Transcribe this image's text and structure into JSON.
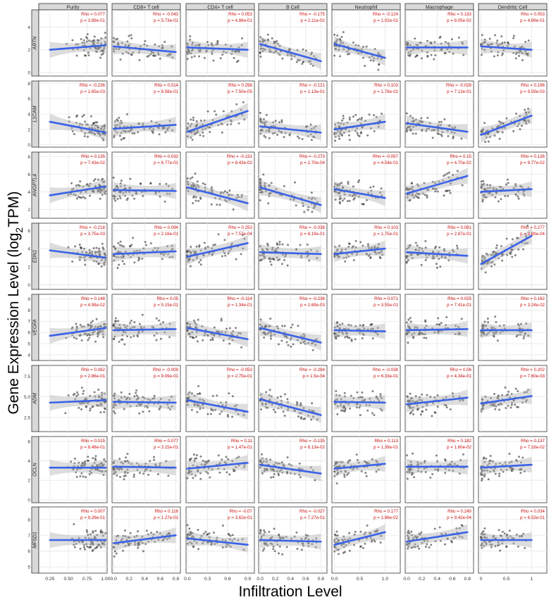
{
  "chart_data": {
    "type": "scatter",
    "title": "",
    "xlabel": "Infiltration Level",
    "ylabel": "Gene Expression Level (log2 TPM)",
    "ylabel_parts": [
      "Gene Expression Level (log",
      "2",
      "TPM)"
    ],
    "grid": true,
    "columns": [
      {
        "name": "Purity",
        "ticks": [
          "0.25",
          "0.50",
          "0.75",
          "1.00"
        ],
        "xlim": [
          0.1,
          1.02
        ],
        "tick_vals": [
          0.25,
          0.5,
          0.75,
          1.0
        ]
      },
      {
        "name": "CD8+ T cell",
        "ticks": [
          "0.0",
          "0.2",
          "0.4",
          "0.6",
          "0.8"
        ],
        "xlim": [
          -0.02,
          0.86
        ],
        "tick_vals": [
          0.0,
          0.2,
          0.4,
          0.6,
          0.8
        ]
      },
      {
        "name": "CD4+ T cell",
        "ticks": [
          "0.0",
          "0.3",
          "0.6",
          "0.9"
        ],
        "xlim": [
          -0.02,
          1.0
        ],
        "tick_vals": [
          0.0,
          0.3,
          0.6,
          0.9
        ]
      },
      {
        "name": "B Cell",
        "ticks": [
          "0.0",
          "0.2",
          "0.4",
          "0.6",
          "0.8"
        ],
        "xlim": [
          -0.02,
          0.88
        ],
        "tick_vals": [
          0.0,
          0.2,
          0.4,
          0.6,
          0.8
        ]
      },
      {
        "name": "Neutrophil",
        "ticks": [
          "0.0",
          "0.5",
          "1.0"
        ],
        "xlim": [
          -0.05,
          1.3
        ],
        "tick_vals": [
          0.0,
          0.5,
          1.0
        ]
      },
      {
        "name": "Macrophage",
        "ticks": [
          "0.0",
          "0.2",
          "0.4",
          "0.6",
          "0.8"
        ],
        "xlim": [
          -0.02,
          0.88
        ],
        "tick_vals": [
          0.0,
          0.2,
          0.4,
          0.6,
          0.8
        ]
      },
      {
        "name": "Dendritic Cell",
        "ticks": [
          "0",
          "0.5",
          "1"
        ],
        "xlim": [
          -0.05,
          1.3
        ],
        "tick_vals": [
          0,
          0.5,
          1
        ]
      }
    ],
    "rows": [
      {
        "gene": "ARTN",
        "yticks": [
          "0",
          "2",
          "4"
        ],
        "ytick_vals": [
          0,
          2,
          4
        ],
        "ylim": [
          -0.3,
          5.5
        ],
        "stats": [
          [
            "0.077",
            "3.89e-01"
          ],
          [
            "-0.043",
            "5.73e-01"
          ],
          [
            "0.053",
            "4.86e-01"
          ],
          [
            "-0.175",
            "2.11e-02"
          ],
          [
            "-0.124",
            "1.02e-01"
          ],
          [
            "0.133",
            "8.05e-02"
          ],
          [
            "0.053",
            "4.89e-01"
          ]
        ],
        "fits": [
          [
            2.0,
            2.4
          ],
          [
            2.3,
            1.8
          ],
          [
            2.2,
            2.0
          ],
          [
            2.5,
            1.0
          ],
          [
            2.5,
            1.3
          ],
          [
            2.2,
            2.2
          ],
          [
            2.3,
            2.0
          ]
        ]
      },
      {
        "gene": "L1CAM",
        "yticks": [
          "0",
          "2",
          "4",
          "6",
          "8"
        ],
        "ytick_vals": [
          0,
          2,
          4,
          6,
          8
        ],
        "ylim": [
          -0.3,
          8.3
        ],
        "stats": [
          [
            "-0.236",
            "1.65e-03"
          ],
          [
            "0.014",
            "8.58e-01"
          ],
          [
            "0.298",
            "7.50e-05"
          ],
          [
            "-0.121",
            "1.13e-01"
          ],
          [
            "0.103",
            "1.78e-01"
          ],
          [
            "-0.028",
            "7.13e-01"
          ],
          [
            "0.196",
            "9.59e-03"
          ]
        ],
        "fits": [
          [
            3.0,
            1.6
          ],
          [
            2.1,
            2.6
          ],
          [
            1.7,
            4.4
          ],
          [
            2.4,
            1.6
          ],
          [
            2.0,
            3.0
          ],
          [
            2.8,
            1.7
          ],
          [
            1.3,
            3.8
          ]
        ]
      },
      {
        "gene": "ANGPTL4",
        "yticks": [
          "2",
          "4",
          "6",
          "8"
        ],
        "ytick_vals": [
          2,
          4,
          6,
          8
        ],
        "ylim": [
          1.0,
          8.5
        ],
        "stats": [
          [
            "0.135",
            "7.43e-02"
          ],
          [
            "0.032",
            "6.77e-01"
          ],
          [
            "-0.131",
            "8.43e-02"
          ],
          [
            "-0.273",
            "2.70e-04"
          ],
          [
            "-0.057",
            "4.54e-01"
          ],
          [
            "0.15",
            "4.70e-02"
          ],
          [
            "0.126",
            "9.77e-02"
          ]
        ],
        "fits": [
          [
            3.6,
            4.6
          ],
          [
            4.2,
            4.1
          ],
          [
            4.5,
            2.7
          ],
          [
            4.5,
            2.5
          ],
          [
            4.3,
            3.3
          ],
          [
            3.8,
            5.8
          ],
          [
            4.0,
            4.3
          ]
        ]
      },
      {
        "gene": "EDN1",
        "yticks": [
          "0",
          "2",
          "4",
          "6"
        ],
        "ytick_vals": [
          0,
          2,
          4,
          6
        ],
        "ylim": [
          -0.5,
          6.8
        ],
        "stats": [
          [
            "-0.218",
            "3.75e-03"
          ],
          [
            "0.094",
            "2.16e-01"
          ],
          [
            "0.253",
            "7.57e-04"
          ],
          [
            "-0.038",
            "6.19e-01"
          ],
          [
            "0.103",
            "1.75e-01"
          ],
          [
            "0.081",
            "2.87e-01"
          ],
          [
            "0.277",
            "2.89e-04"
          ]
        ],
        "fits": [
          [
            3.8,
            3.0
          ],
          [
            3.4,
            3.7
          ],
          [
            3.1,
            4.6
          ],
          [
            3.6,
            3.4
          ],
          [
            3.4,
            4.0
          ],
          [
            3.6,
            3.2
          ],
          [
            2.3,
            5.4
          ]
        ]
      },
      {
        "gene": "VEGFA",
        "yticks": [
          "4",
          "5",
          "6",
          "7",
          "8",
          "9"
        ],
        "ytick_vals": [
          4,
          5,
          6,
          7,
          8,
          9
        ],
        "ylim": [
          3.5,
          9.4
        ],
        "stats": [
          [
            "0.148",
            "4.98e-02"
          ],
          [
            "0.05",
            "5.15e-01"
          ],
          [
            "-0.114",
            "1.34e-01"
          ],
          [
            "-0.236",
            "1.69e-03"
          ],
          [
            "0.071",
            "3.55e-01"
          ],
          [
            "0.025",
            "7.41e-01"
          ],
          [
            "0.162",
            "3.24e-02"
          ]
        ],
        "fits": [
          [
            5.7,
            6.4
          ],
          [
            6.2,
            6.3
          ],
          [
            6.4,
            5.4
          ],
          [
            6.4,
            5.1
          ],
          [
            6.2,
            6.1
          ],
          [
            6.2,
            6.3
          ],
          [
            6.2,
            6.2
          ]
        ]
      },
      {
        "gene": "ADM",
        "yticks": [
          "2.5",
          "5.0",
          "7.5"
        ],
        "ytick_vals": [
          2.5,
          5.0,
          7.5
        ],
        "ylim": [
          0.8,
          8.8
        ],
        "stats": [
          [
            "0.062",
            "2.86e-01"
          ],
          [
            "-0.009",
            "9.09e-01"
          ],
          [
            "-0.053",
            "2.75e-01"
          ],
          [
            "-0.284",
            "1.5e-04"
          ],
          [
            "-0.038",
            "6.33e-01"
          ],
          [
            "0.06",
            "4.34e-01"
          ],
          [
            "0.202",
            "7.60e-03"
          ]
        ],
        "fits": [
          [
            4.3,
            4.6
          ],
          [
            4.4,
            4.3
          ],
          [
            4.6,
            3.2
          ],
          [
            4.7,
            2.8
          ],
          [
            4.4,
            4.3
          ],
          [
            4.1,
            4.9
          ],
          [
            4.2,
            5.1
          ]
        ]
      },
      {
        "gene": "OCLN",
        "yticks": [
          "0",
          "2",
          "4",
          "6"
        ],
        "ytick_vals": [
          0,
          2,
          4,
          6
        ],
        "ylim": [
          -0.3,
          6.5
        ],
        "stats": [
          [
            "0.015",
            "8.48e-01"
          ],
          [
            "0.077",
            "3.15e-01"
          ],
          [
            "0.11",
            "1.47e-01"
          ],
          [
            "-0.135",
            "8.13e-02"
          ],
          [
            "0.113",
            "1.39e-01"
          ],
          [
            "0.182",
            "1.60e-02"
          ],
          [
            "0.137",
            "7.16e-02"
          ]
        ],
        "fits": [
          [
            3.3,
            3.3
          ],
          [
            3.4,
            3.3
          ],
          [
            3.2,
            3.8
          ],
          [
            3.6,
            2.7
          ],
          [
            3.2,
            3.7
          ],
          [
            3.4,
            3.4
          ],
          [
            3.3,
            3.6
          ]
        ]
      },
      {
        "gene": "MFSD1",
        "yticks": [
          "5",
          "6",
          "7",
          "8"
        ],
        "ytick_vals": [
          5,
          6,
          7,
          8
        ],
        "ylim": [
          4.6,
          8.8
        ],
        "stats": [
          [
            "0.007",
            "9.26e-01"
          ],
          [
            "0.116",
            "1.27e-01"
          ],
          [
            "-0.07",
            "3.62e-01"
          ],
          [
            "-0.027",
            "7.27e-01"
          ],
          [
            "0.177",
            "1.86e-02"
          ],
          [
            "0.249",
            "9.42e-04"
          ],
          [
            "0.034",
            "6.53e-01"
          ]
        ],
        "fits": [
          [
            6.7,
            6.7
          ],
          [
            6.5,
            7.0
          ],
          [
            6.8,
            6.4
          ],
          [
            6.7,
            6.6
          ],
          [
            6.4,
            7.2
          ],
          [
            6.6,
            7.2
          ],
          [
            6.7,
            6.7
          ]
        ]
      }
    ]
  }
}
